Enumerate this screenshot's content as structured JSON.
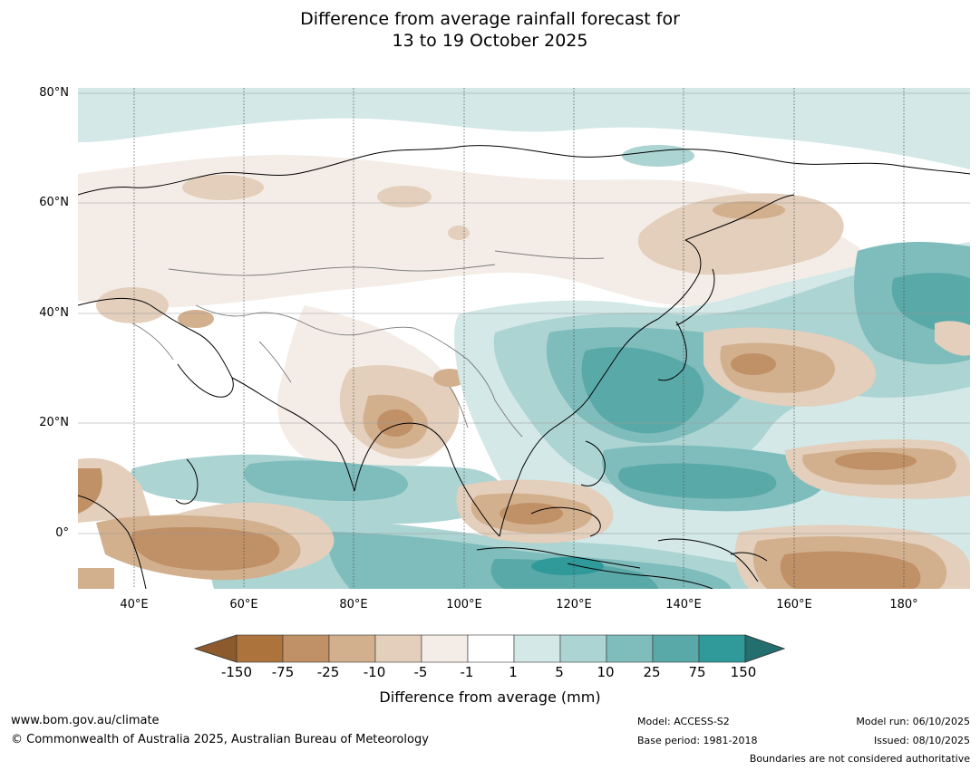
{
  "title": {
    "line1": "Difference from average rainfall forecast for",
    "line2": "13 to 19 October 2025"
  },
  "map": {
    "lat_ticks": [
      "80°N",
      "60°N",
      "40°N",
      "20°N",
      "0°"
    ],
    "lon_ticks": [
      "40°E",
      "60°E",
      "80°E",
      "100°E",
      "120°E",
      "140°E",
      "160°E",
      "180°"
    ],
    "lat_values": [
      80,
      60,
      40,
      20,
      0
    ],
    "lon_values": [
      40,
      60,
      80,
      100,
      120,
      140,
      160,
      180
    ],
    "extent": {
      "lon": [
        30,
        192
      ],
      "lat": [
        -10,
        81
      ]
    }
  },
  "legend": {
    "title": "Difference from average (mm)",
    "labels": [
      "-150",
      "-75",
      "-25",
      "-10",
      "-5",
      "-1",
      "1",
      "5",
      "10",
      "25",
      "75",
      "150"
    ],
    "colors": [
      "#8c5a2c",
      "#ac733d",
      "#c09067",
      "#d2b08e",
      "#e3cfbb",
      "#f4ede7",
      "#ffffff",
      "#d3e8e7",
      "#acd4d3",
      "#7fbcbc",
      "#5aa9a9",
      "#30999a",
      "#236e6e"
    ]
  },
  "footer": {
    "website": "www.bom.gov.au/climate",
    "copyright": "© Commonwealth of Australia 2025, Australian Bureau of Meteorology",
    "model": "Model: ACCESS-S2",
    "base_period": "Base period: 1981-2018",
    "model_run": "Model run: 06/10/2025",
    "issued": "Issued: 08/10/2025",
    "disclaimer": "Boundaries are not considered authoritative"
  }
}
